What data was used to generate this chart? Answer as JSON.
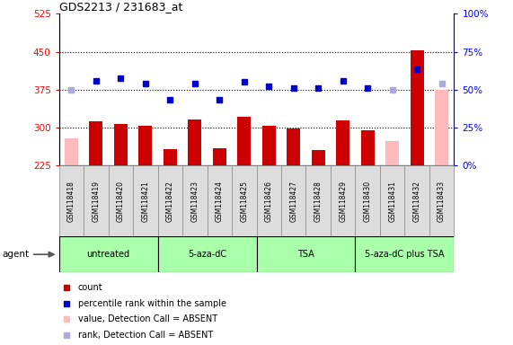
{
  "title": "GDS2213 / 231683_at",
  "samples": [
    "GSM118418",
    "GSM118419",
    "GSM118420",
    "GSM118421",
    "GSM118422",
    "GSM118423",
    "GSM118424",
    "GSM118425",
    "GSM118426",
    "GSM118427",
    "GSM118428",
    "GSM118429",
    "GSM118430",
    "GSM118431",
    "GSM118432",
    "GSM118433"
  ],
  "count_values": [
    null,
    313,
    308,
    303,
    258,
    316,
    260,
    322,
    304,
    298,
    256,
    314,
    294,
    null,
    452,
    null
  ],
  "absent_bar_values": [
    278,
    null,
    null,
    null,
    null,
    null,
    null,
    null,
    null,
    null,
    null,
    null,
    null,
    274,
    null,
    375
  ],
  "percentile_values": [
    null,
    392,
    398,
    388,
    355,
    388,
    355,
    390,
    382,
    378,
    378,
    392,
    378,
    null,
    415,
    null
  ],
  "absent_rank_values": [
    375,
    null,
    null,
    null,
    null,
    null,
    null,
    null,
    null,
    null,
    null,
    null,
    null,
    375,
    null,
    388
  ],
  "groups": {
    "untreated": [
      0,
      1,
      2,
      3
    ],
    "5-aza-dC": [
      4,
      5,
      6,
      7
    ],
    "TSA": [
      8,
      9,
      10,
      11
    ],
    "5-aza-dC plus TSA": [
      12,
      13,
      14,
      15
    ]
  },
  "ylim_left": [
    225,
    525
  ],
  "ylim_right": [
    0,
    100
  ],
  "yticks_left": [
    225,
    300,
    375,
    450,
    525
  ],
  "yticks_right": [
    0,
    25,
    50,
    75,
    100
  ],
  "bar_color_present": "#cc0000",
  "bar_color_absent": "#ffbbbb",
  "dot_color_present": "#0000cc",
  "dot_color_absent": "#aaaadd",
  "group_color": "#aaffaa",
  "bar_width": 0.55,
  "legend_items": [
    "count",
    "percentile rank within the sample",
    "value, Detection Call = ABSENT",
    "rank, Detection Call = ABSENT"
  ]
}
